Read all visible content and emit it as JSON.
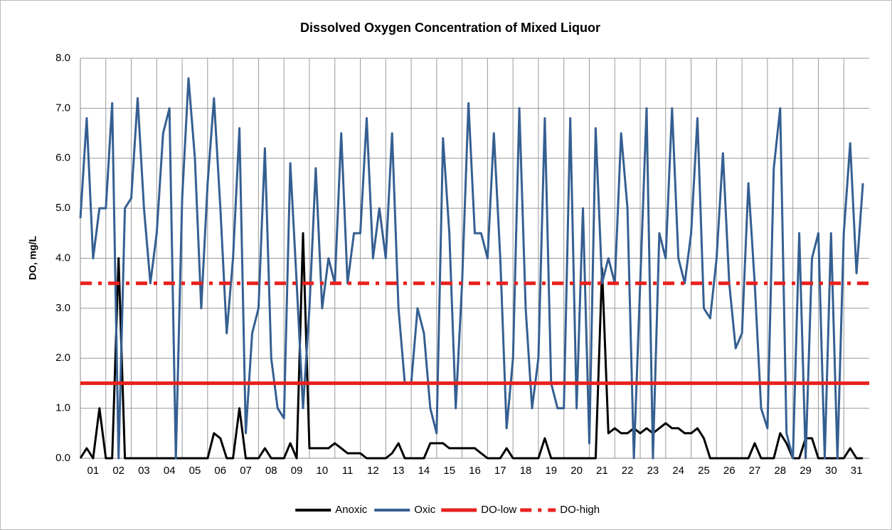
{
  "chart_data": {
    "type": "line",
    "title": "Dissolved Oxygen Concentration of Mixed Liquor",
    "y_label": "DO, mg/L",
    "xlim": [
      1,
      32
    ],
    "xticks": [
      {
        "value": 1,
        "label": "01"
      },
      {
        "value": 2,
        "label": "02"
      },
      {
        "value": 3,
        "label": "03"
      },
      {
        "value": 4,
        "label": "04"
      },
      {
        "value": 5,
        "label": "05"
      },
      {
        "value": 6,
        "label": "06"
      },
      {
        "value": 7,
        "label": "07"
      },
      {
        "value": 8,
        "label": "08"
      },
      {
        "value": 9,
        "label": "09"
      },
      {
        "value": 10,
        "label": "10"
      },
      {
        "value": 11,
        "label": "11"
      },
      {
        "value": 12,
        "label": "12"
      },
      {
        "value": 13,
        "label": "13"
      },
      {
        "value": 14,
        "label": "14"
      },
      {
        "value": 15,
        "label": "15"
      },
      {
        "value": 16,
        "label": "16"
      },
      {
        "value": 17,
        "label": "17"
      },
      {
        "value": 18,
        "label": "18"
      },
      {
        "value": 19,
        "label": "19"
      },
      {
        "value": 20,
        "label": "20"
      },
      {
        "value": 21,
        "label": "21"
      },
      {
        "value": 22,
        "label": "22"
      },
      {
        "value": 23,
        "label": "23"
      },
      {
        "value": 24,
        "label": "24"
      },
      {
        "value": 25,
        "label": "25"
      },
      {
        "value": 26,
        "label": "26"
      },
      {
        "value": 27,
        "label": "27"
      },
      {
        "value": 28,
        "label": "28"
      },
      {
        "value": 29,
        "label": "29"
      },
      {
        "value": 30,
        "label": "30"
      },
      {
        "value": 31,
        "label": "31"
      }
    ],
    "ylim": [
      0,
      8
    ],
    "yticks": [
      {
        "value": 0,
        "label": "0.0"
      },
      {
        "value": 1,
        "label": "1.0"
      },
      {
        "value": 2,
        "label": "2.0"
      },
      {
        "value": 3,
        "label": "3.0"
      },
      {
        "value": 4,
        "label": "4.0"
      },
      {
        "value": 5,
        "label": "5.0"
      },
      {
        "value": 6,
        "label": "6.0"
      },
      {
        "value": 7,
        "label": "7.0"
      },
      {
        "value": 8,
        "label": "8.0"
      }
    ],
    "grid": true,
    "legend": "bottom",
    "x": [
      1,
      1.25,
      1.5,
      1.75,
      2,
      2.25,
      2.5,
      2.75,
      3,
      3.25,
      3.5,
      3.75,
      4,
      4.25,
      4.5,
      4.75,
      5,
      5.25,
      5.5,
      5.75,
      6,
      6.25,
      6.5,
      6.75,
      7,
      7.25,
      7.5,
      7.75,
      8,
      8.25,
      8.5,
      8.75,
      9,
      9.25,
      9.5,
      9.75,
      10,
      10.25,
      10.5,
      10.75,
      11,
      11.25,
      11.5,
      11.75,
      12,
      12.25,
      12.5,
      12.75,
      13,
      13.25,
      13.5,
      13.75,
      14,
      14.25,
      14.5,
      14.75,
      15,
      15.25,
      15.5,
      15.75,
      16,
      16.25,
      16.5,
      16.75,
      17,
      17.25,
      17.5,
      17.75,
      18,
      18.25,
      18.5,
      18.75,
      19,
      19.25,
      19.5,
      19.75,
      20,
      20.25,
      20.5,
      20.75,
      21,
      21.25,
      21.5,
      21.75,
      22,
      22.25,
      22.5,
      22.75,
      23,
      23.25,
      23.5,
      23.75,
      24,
      24.25,
      24.5,
      24.75,
      25,
      25.25,
      25.5,
      25.75,
      26,
      26.25,
      26.5,
      26.75,
      27,
      27.25,
      27.5,
      27.75,
      28,
      28.25,
      28.5,
      28.75,
      29,
      29.25,
      29.5,
      29.75,
      30,
      30.25,
      30.5,
      30.75,
      31,
      31.25,
      31.5,
      31.75
    ],
    "series": [
      {
        "name": "Anoxic",
        "color": "#000000",
        "dash": false,
        "values": [
          0,
          0.2,
          0,
          1.0,
          0,
          0,
          4.0,
          0,
          0,
          0,
          0,
          0,
          0,
          0,
          0,
          0,
          0,
          0,
          0,
          0,
          0,
          0.5,
          0.4,
          0,
          0,
          1.0,
          0,
          0,
          0,
          0.2,
          0,
          0,
          0,
          0.3,
          0,
          4.5,
          0.2,
          0.2,
          0.2,
          0.2,
          0.3,
          0.2,
          0.1,
          0.1,
          0.1,
          0,
          0,
          0,
          0,
          0.1,
          0.3,
          0,
          0,
          0,
          0,
          0.3,
          0.3,
          0.3,
          0.2,
          0.2,
          0.2,
          0.2,
          0.2,
          0.1,
          0,
          0,
          0,
          0.2,
          0,
          0,
          0,
          0,
          0,
          0.4,
          0,
          0,
          0,
          0,
          0,
          0,
          0,
          0,
          3.8,
          0.5,
          0.6,
          0.5,
          0.5,
          0.6,
          0.5,
          0.6,
          0.5,
          0.6,
          0.7,
          0.6,
          0.6,
          0.5,
          0.5,
          0.6,
          0.4,
          0,
          0,
          0,
          0,
          0,
          0,
          0,
          0.3,
          0,
          0,
          0,
          0.5,
          0.3,
          0,
          0,
          0.4,
          0.4,
          0,
          0,
          0,
          0,
          0,
          0.2,
          0,
          0
        ]
      },
      {
        "name": "Oxic",
        "color": "#355f91",
        "dash": false,
        "values": [
          4.8,
          6.8,
          4.0,
          5.0,
          5.0,
          7.1,
          0,
          5.0,
          5.2,
          7.2,
          5.0,
          3.5,
          4.5,
          6.5,
          7.0,
          0,
          5.2,
          7.6,
          6.0,
          3.0,
          5.5,
          7.2,
          5.0,
          2.5,
          4.0,
          6.6,
          0.5,
          2.5,
          3.0,
          6.2,
          2.0,
          1.0,
          0.8,
          5.9,
          3.5,
          1.0,
          3.0,
          5.8,
          3.0,
          4.0,
          3.5,
          6.5,
          3.5,
          4.5,
          4.5,
          6.8,
          4.0,
          5.0,
          4.0,
          6.5,
          3.0,
          1.5,
          1.5,
          3.0,
          2.5,
          1.0,
          0.5,
          6.4,
          4.5,
          1.0,
          3.5,
          7.1,
          4.5,
          4.5,
          4.0,
          6.5,
          4.0,
          0.6,
          2.0,
          7.0,
          3.0,
          1.0,
          2.0,
          6.8,
          1.5,
          1.0,
          1.0,
          6.8,
          1.0,
          5.0,
          0.3,
          6.6,
          3.5,
          4.0,
          3.5,
          6.5,
          5.0,
          0,
          3.5,
          7.0,
          0,
          4.5,
          4.0,
          7.0,
          4.0,
          3.5,
          4.5,
          6.8,
          3.0,
          2.8,
          4.0,
          6.1,
          3.5,
          2.2,
          2.5,
          5.5,
          3.5,
          1.0,
          0.6,
          5.8,
          7.0,
          0.5,
          0,
          4.5,
          0,
          4.0,
          4.5,
          0,
          4.5,
          0,
          4.5,
          6.3,
          3.7,
          5.5
        ]
      },
      {
        "name": "DO-low",
        "color": "#e8201c",
        "dash": false,
        "x": [
          1,
          32
        ],
        "values": [
          1.5,
          1.5
        ]
      },
      {
        "name": "DO-high",
        "color": "#e8201c",
        "dash": true,
        "x": [
          1,
          32
        ],
        "values": [
          3.5,
          3.5
        ]
      }
    ]
  }
}
